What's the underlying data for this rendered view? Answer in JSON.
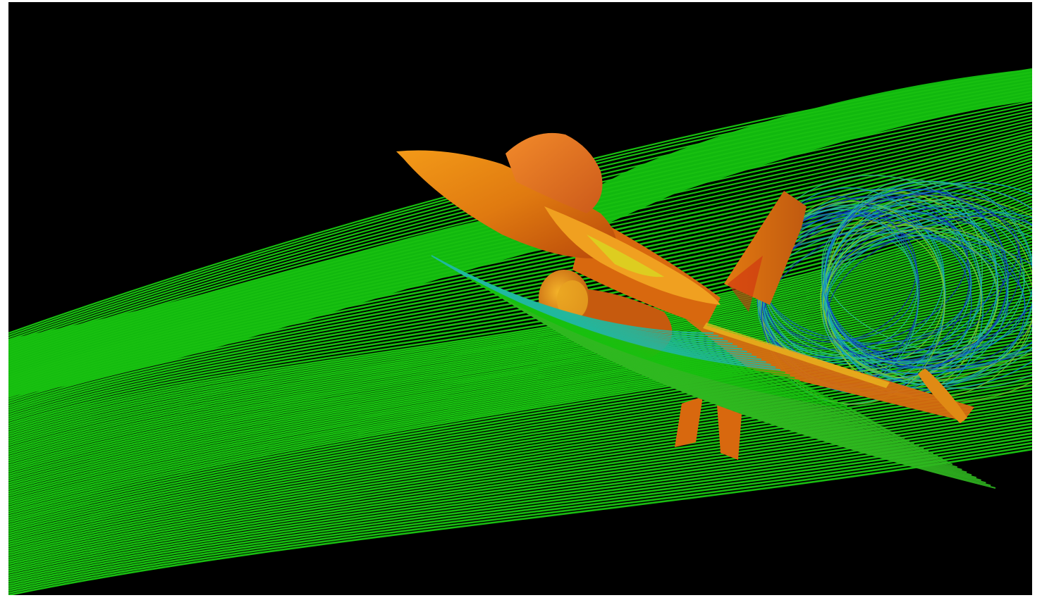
{
  "scene": {
    "background_color": "#000000",
    "frame_color": "#ffffff",
    "aircraft_color": "#e0780f",
    "aircraft_highlight_color": "#f5a81c",
    "streamline_base_color": "#18c010",
    "colormap": [
      "#1020c0",
      "#10a0d0",
      "#18c010",
      "#c8d010",
      "#e07010",
      "#d01010"
    ]
  }
}
